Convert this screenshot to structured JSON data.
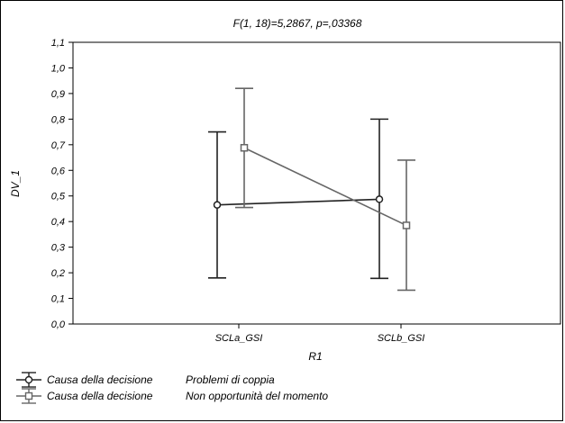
{
  "chart_data": {
    "type": "line",
    "title": "F(1, 18)=5,2867, p=,03368",
    "xlabel": "R1",
    "ylabel": "DV_1",
    "categories": [
      "SCLa_GSI",
      "SCLb_GSI"
    ],
    "ylim": [
      0.0,
      1.1
    ],
    "yticks": [
      "0,0",
      "0,1",
      "0,2",
      "0,3",
      "0,4",
      "0,5",
      "0,6",
      "0,7",
      "0,8",
      "0,9",
      "1,0",
      "1,1"
    ],
    "legend_position": "bottom-left",
    "grid": false,
    "series": [
      {
        "name": "Causa della decisione",
        "level": "Problemi di coppia",
        "marker": "circle",
        "color": "#222222",
        "values": [
          0.465,
          0.487
        ],
        "lower": [
          0.18,
          0.178
        ],
        "upper": [
          0.75,
          0.8
        ]
      },
      {
        "name": "Causa della decisione",
        "level": "Non opportunità del momento",
        "marker": "square",
        "color": "#666666",
        "values": [
          0.688,
          0.385
        ],
        "lower": [
          0.455,
          0.132
        ],
        "upper": [
          0.92,
          0.64
        ]
      }
    ]
  }
}
